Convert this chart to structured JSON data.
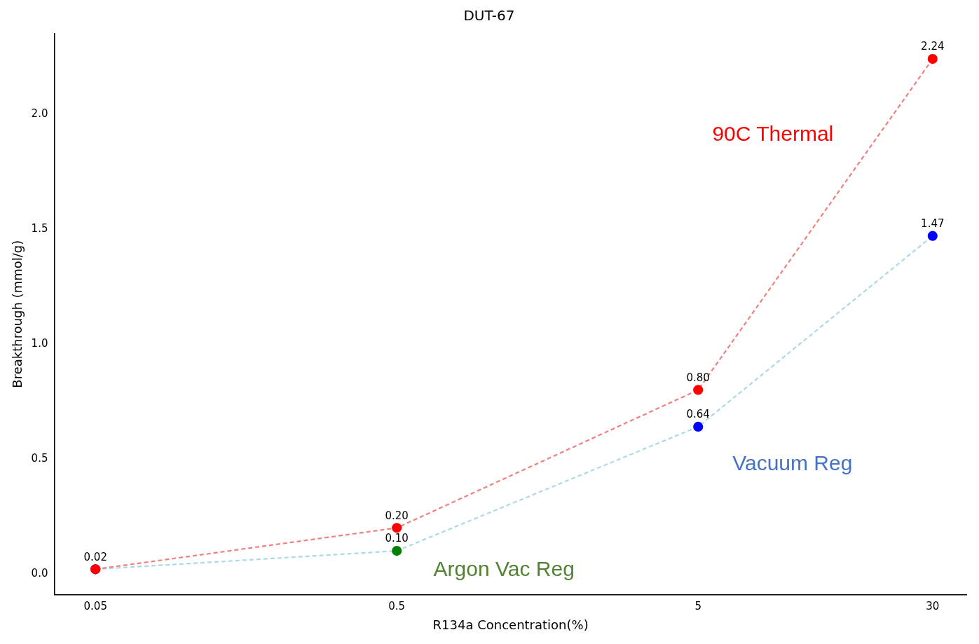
{
  "chart_data": {
    "type": "line",
    "title": "DUT-67",
    "xlabel": "R134a Concentration(%)",
    "ylabel": "Breakthrough (mmol/g)",
    "x": [
      0.05,
      0.5,
      5,
      30
    ],
    "log": "x",
    "xlim": [
      0.0365,
      39
    ],
    "xticks": [
      0.05,
      0.5,
      5,
      30
    ],
    "ylim": [
      -0.09,
      2.35
    ],
    "yticks": [
      {
        "value": 0,
        "label": "0.0"
      },
      0.5,
      {
        "value": 1,
        "label": "1.0"
      },
      1.5,
      {
        "value": 2,
        "label": "2.0"
      }
    ],
    "series": [
      {
        "name": "90C Thermal",
        "color": "#f08080",
        "colors": [
          "#ff0000",
          "#ff0000",
          "#ff0000",
          "#ff0000"
        ],
        "values": [
          0.02,
          0.2,
          0.8,
          2.24
        ],
        "value_labels": [
          "0.02",
          "0.20",
          "0.80",
          "2.24"
        ]
      },
      {
        "name": "Vacuum Reg",
        "color": "#add8e6",
        "colors": [
          "#0000ff",
          "#008000",
          "#0000ff",
          "#0000ff"
        ],
        "values": [
          0.02,
          0.1,
          0.64,
          1.47
        ],
        "value_labels": [
          null,
          "0.10",
          "0.64",
          "1.47"
        ]
      }
    ],
    "annotations": [
      {
        "text": "Argon Vac Reg",
        "x": 0.5,
        "y": 0.1
      }
    ],
    "grid": false,
    "legend": false,
    "marker": "circle",
    "line_style": "dashed"
  }
}
